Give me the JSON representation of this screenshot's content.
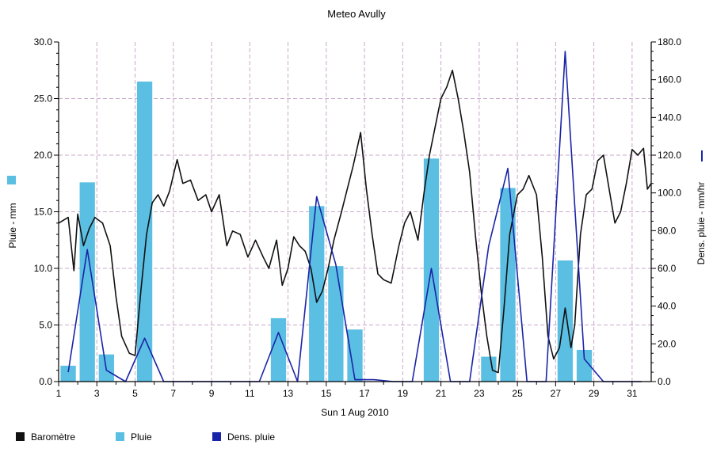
{
  "chart_data": {
    "type": "bar",
    "title": "Meteo  Avully",
    "xlabel": "Sun 1 Aug 2010",
    "ylabel_left": "Pluie - mm",
    "ylabel_right": "Dens. pluie - mm/hr",
    "x_ticks": [
      "1",
      "3",
      "5",
      "7",
      "9",
      "11",
      "13",
      "15",
      "17",
      "19",
      "21",
      "23",
      "25",
      "27",
      "29",
      "31"
    ],
    "x_minor_ticks": [
      "2",
      "4",
      "6",
      "8",
      "10",
      "12",
      "14",
      "16",
      "18",
      "20",
      "22",
      "24",
      "26",
      "28",
      "30"
    ],
    "xlim": [
      1,
      32
    ],
    "ylim_left": [
      0,
      30
    ],
    "ylim_right": [
      0,
      180
    ],
    "y_ticks_left": [
      "0.0",
      "5.0",
      "10.0",
      "15.0",
      "20.0",
      "25.0",
      "30.0"
    ],
    "y_ticks_right": [
      "0.0",
      "20.0",
      "40.0",
      "60.0",
      "80.0",
      "100.0",
      "120.0",
      "140.0",
      "160.0",
      "180.0"
    ],
    "grid": true,
    "legend_position": "bottom-left",
    "colors": {
      "barometre": "#111111",
      "pluie": "#5bbfe3",
      "dens_pluie": "#1a24a8",
      "grid": "#c9a9c9"
    },
    "legend": [
      {
        "label": "Baromètre",
        "color": "#111111"
      },
      {
        "label": "Pluie",
        "color": "#5bbfe3"
      },
      {
        "label": "Dens. pluie",
        "color": "#1a24a8"
      }
    ],
    "series": [
      {
        "name": "Pluie",
        "kind": "bar",
        "axis": "left",
        "x": [
          1.5,
          2.5,
          3.5,
          5.5,
          12.5,
          14.5,
          15.5,
          16.5,
          20.5,
          23.5,
          24.5,
          27.5,
          28.5
        ],
        "values": [
          1.4,
          17.6,
          2.4,
          26.5,
          5.6,
          15.5,
          10.2,
          4.6,
          19.7,
          2.2,
          17.1,
          10.7,
          2.8
        ]
      },
      {
        "name": "Dens. pluie",
        "kind": "line",
        "axis": "right",
        "x": [
          1.5,
          2.5,
          3.5,
          4.5,
          5.5,
          6.5,
          7.5,
          8.5,
          9.5,
          10.5,
          11.5,
          12.5,
          13.5,
          14.5,
          15.5,
          16.5,
          17.5,
          18.5,
          19.5,
          20.5,
          21.5,
          22.5,
          23.5,
          24.5,
          25.5,
          26.5,
          27.5,
          28.5,
          29.5,
          30.5,
          31.5
        ],
        "values": [
          5,
          70,
          6,
          0,
          23,
          0,
          0,
          0,
          0,
          0,
          0,
          26,
          0,
          98,
          62,
          1,
          1,
          0,
          0,
          60,
          0,
          0,
          72,
          113,
          0,
          0,
          175,
          12,
          0,
          0,
          0
        ]
      },
      {
        "name": "Baromètre",
        "kind": "line",
        "axis": "left",
        "x": [
          1.0,
          1.5,
          1.8,
          2.0,
          2.3,
          2.6,
          2.9,
          3.3,
          3.7,
          4.0,
          4.3,
          4.7,
          5.0,
          5.3,
          5.6,
          5.9,
          6.2,
          6.5,
          6.8,
          7.2,
          7.5,
          7.9,
          8.3,
          8.7,
          9.0,
          9.4,
          9.8,
          10.1,
          10.5,
          10.9,
          11.3,
          11.7,
          12.0,
          12.4,
          12.7,
          13.0,
          13.3,
          13.6,
          13.9,
          14.2,
          14.5,
          14.8,
          15.1,
          15.4,
          15.8,
          16.1,
          16.4,
          16.8,
          17.1,
          17.4,
          17.7,
          18.0,
          18.4,
          18.8,
          19.1,
          19.4,
          19.8,
          20.1,
          20.4,
          20.7,
          21.0,
          21.3,
          21.6,
          21.9,
          22.2,
          22.5,
          22.8,
          23.1,
          23.4,
          23.7,
          24.0,
          24.3,
          24.6,
          25.0,
          25.3,
          25.6,
          26.0,
          26.3,
          26.6,
          26.9,
          27.2,
          27.5,
          27.8,
          28.0,
          28.3,
          28.6,
          28.9,
          29.2,
          29.5,
          29.8,
          30.1,
          30.4,
          30.7,
          31.0,
          31.3,
          31.6,
          31.8,
          32.0
        ],
        "values": [
          14.0,
          14.5,
          9.8,
          14.8,
          12.0,
          13.5,
          14.5,
          14.0,
          12.0,
          7.5,
          4.0,
          2.5,
          2.3,
          8.0,
          13.0,
          15.8,
          16.5,
          15.5,
          16.8,
          19.6,
          17.5,
          17.8,
          16.0,
          16.5,
          15.0,
          16.5,
          12.0,
          13.3,
          13.0,
          11.0,
          12.5,
          11.0,
          10.0,
          12.5,
          8.5,
          10.0,
          12.8,
          12.0,
          11.5,
          10.0,
          7.0,
          8.0,
          10.0,
          12.5,
          15.0,
          17.0,
          19.0,
          22.0,
          17.0,
          13.0,
          9.5,
          9.0,
          8.7,
          12.0,
          14.0,
          15.0,
          12.5,
          16.5,
          20.0,
          22.5,
          25.0,
          26.0,
          27.5,
          25.0,
          22.0,
          18.5,
          13.0,
          8.0,
          4.0,
          1.0,
          0.8,
          6.5,
          13.0,
          16.5,
          17.0,
          18.2,
          16.5,
          11.0,
          4.0,
          2.0,
          3.0,
          6.5,
          3.0,
          5.0,
          13.0,
          16.5,
          17.0,
          19.5,
          20.0,
          17.0,
          14.0,
          15.0,
          17.5,
          20.5,
          20.0,
          20.6,
          17.0,
          17.5
        ]
      }
    ]
  }
}
